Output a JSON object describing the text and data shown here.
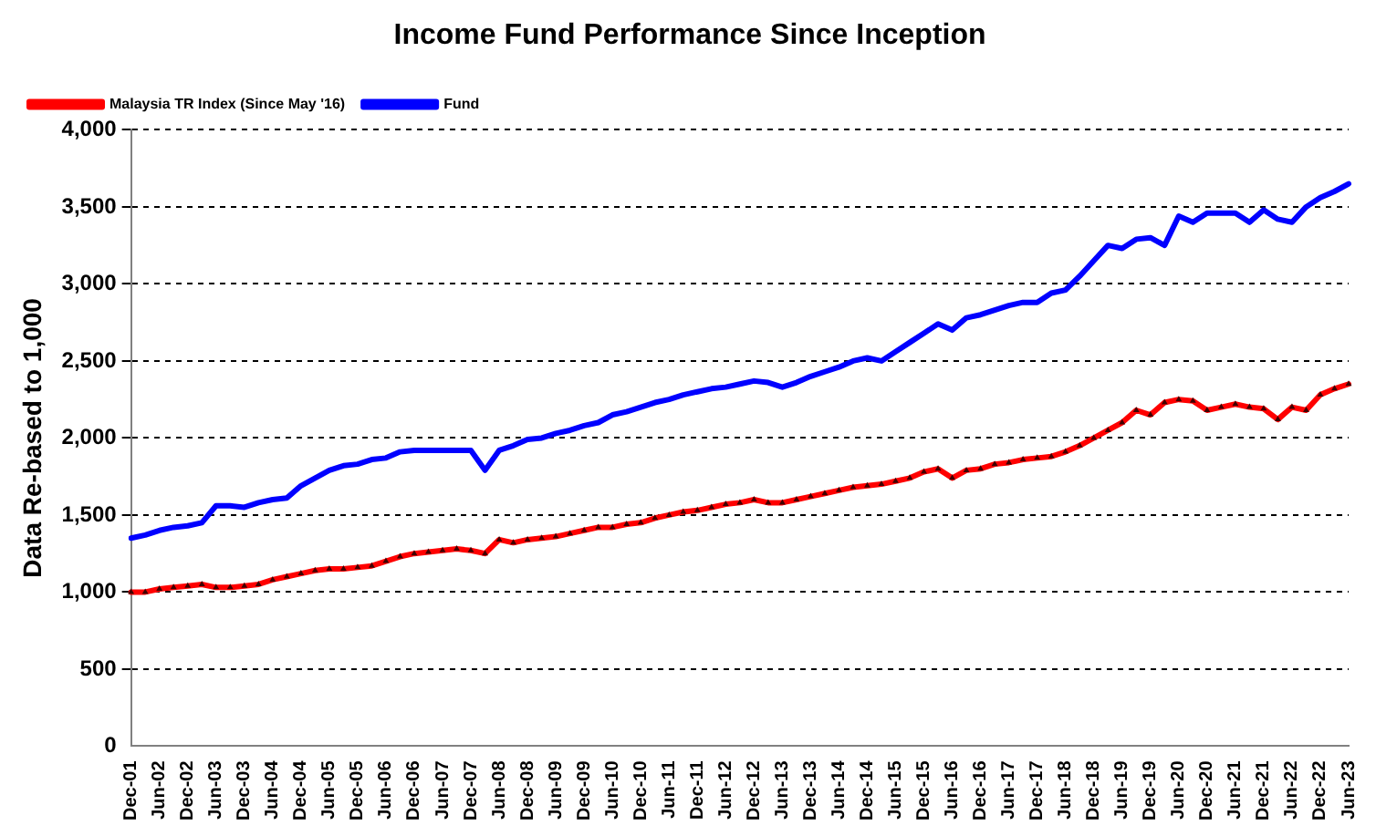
{
  "chart_data": {
    "type": "line",
    "title": "Income Fund Performance Since Inception",
    "ylabel": "Data Re-based to 1,000",
    "categories": [
      "Dec-01",
      null,
      "Jun-02",
      null,
      "Dec-02",
      null,
      "Jun-03",
      null,
      "Dec-03",
      null,
      "Jun-04",
      null,
      "Dec-04",
      null,
      "Jun-05",
      null,
      "Dec-05",
      null,
      "Jun-06",
      null,
      "Dec-06",
      null,
      "Jun-07",
      null,
      "Dec-07",
      null,
      "Jun-08",
      null,
      "Dec-08",
      null,
      "Jun-09",
      null,
      "Dec-09",
      null,
      "Jun-10",
      null,
      "Dec-10",
      null,
      "Jun-11",
      null,
      "Dec-11",
      null,
      "Jun-12",
      null,
      "Dec-12",
      null,
      "Jun-13",
      null,
      "Dec-13",
      null,
      "Jun-14",
      null,
      "Dec-14",
      null,
      "Jun-15",
      null,
      "Dec-15",
      null,
      "Jun-16",
      null,
      "Dec-16",
      null,
      "Jun-17",
      null,
      "Dec-17",
      null,
      "Jun-18",
      null,
      "Dec-18",
      null,
      "Jun-19",
      null,
      "Dec-19",
      null,
      "Jun-20",
      null,
      "Dec-20",
      null,
      "Jun-21",
      null,
      "Dec-21",
      null,
      "Jun-22",
      null,
      "Dec-22",
      null,
      "Jun-23"
    ],
    "series": [
      {
        "name": "Malaysia TR Index (Since May '16)",
        "color": "#ff0000",
        "marker": "triangle",
        "values": [
          1000,
          1000,
          1020,
          1030,
          1040,
          1050,
          1030,
          1030,
          1040,
          1050,
          1080,
          1100,
          1120,
          1140,
          1150,
          1150,
          1160,
          1170,
          1200,
          1230,
          1250,
          1260,
          1270,
          1280,
          1270,
          1250,
          1340,
          1320,
          1340,
          1350,
          1360,
          1380,
          1400,
          1420,
          1420,
          1440,
          1450,
          1480,
          1500,
          1520,
          1530,
          1550,
          1570,
          1580,
          1600,
          1580,
          1580,
          1600,
          1620,
          1640,
          1660,
          1680,
          1690,
          1700,
          1720,
          1740,
          1780,
          1800,
          1740,
          1790,
          1800,
          1830,
          1840,
          1860,
          1870,
          1880,
          1910,
          1950,
          2000,
          2050,
          2100,
          2180,
          2150,
          2230,
          2250,
          2240,
          2180,
          2200,
          2220,
          2200,
          2190,
          2120,
          2200,
          2180,
          2280,
          2320,
          2350
        ]
      },
      {
        "name": "Fund",
        "color": "#0000ff",
        "marker": "none",
        "values": [
          1350,
          1370,
          1400,
          1420,
          1430,
          1450,
          1560,
          1560,
          1550,
          1580,
          1600,
          1610,
          1690,
          1740,
          1790,
          1820,
          1830,
          1860,
          1870,
          1910,
          1920,
          1920,
          1920,
          1920,
          1920,
          1790,
          1920,
          1950,
          1990,
          2000,
          2030,
          2050,
          2080,
          2100,
          2150,
          2170,
          2200,
          2230,
          2250,
          2280,
          2300,
          2320,
          2330,
          2350,
          2370,
          2360,
          2330,
          2360,
          2400,
          2430,
          2460,
          2500,
          2520,
          2500,
          2560,
          2620,
          2680,
          2740,
          2700,
          2780,
          2800,
          2830,
          2860,
          2880,
          2880,
          2940,
          2960,
          3050,
          3150,
          3250,
          3230,
          3290,
          3300,
          3250,
          3440,
          3400,
          3460,
          3460,
          3460,
          3400,
          3480,
          3420,
          3400,
          3500,
          3560,
          3600,
          3650
        ]
      }
    ],
    "ylim": [
      0,
      4000
    ],
    "yticks": [
      0,
      500,
      {
        "value": 1000,
        "label": "1,000"
      },
      {
        "value": 1500,
        "label": "1,500"
      },
      {
        "value": 2000,
        "label": "2,000"
      },
      {
        "value": 2500,
        "label": "2,500"
      },
      {
        "value": 3000,
        "label": "3,000"
      },
      {
        "value": 3500,
        "label": "3,500"
      },
      {
        "value": 4000,
        "label": "4,000"
      }
    ],
    "grid": "y",
    "legend": "top left",
    "line_style": "solid"
  }
}
